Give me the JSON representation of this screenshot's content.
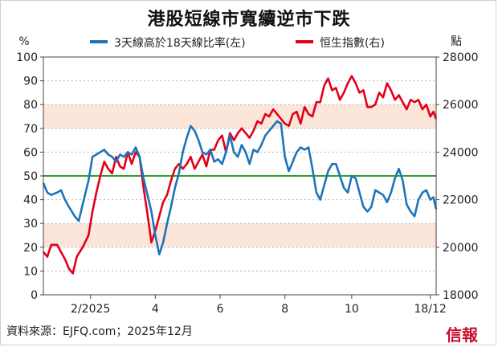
{
  "chart_data": {
    "type": "line",
    "title": "港股短線市寬續逆市下跌",
    "y_left": {
      "label": "%",
      "range": [
        0,
        100
      ],
      "ticks": [
        0,
        10,
        20,
        30,
        40,
        50,
        60,
        70,
        80,
        90,
        100
      ]
    },
    "y_right": {
      "label": "點",
      "range": [
        18000,
        28000
      ],
      "ticks": [
        18000,
        20000,
        22000,
        24000,
        26000,
        28000
      ]
    },
    "x_ticks": [
      {
        "label": "2/2025",
        "pos": 0.12
      },
      {
        "label": "4",
        "pos": 0.285
      },
      {
        "label": "6",
        "pos": 0.45
      },
      {
        "label": "8",
        "pos": 0.615
      },
      {
        "label": "10",
        "pos": 0.785
      },
      {
        "label": "18/12",
        "pos": 0.985
      }
    ],
    "reference_line": {
      "value": 50,
      "color": "#2ca02c"
    },
    "bands": [
      {
        "from": 70,
        "to": 80,
        "color": "#fbe6d9"
      },
      {
        "from": 20,
        "to": 30,
        "color": "#fbe6d9"
      }
    ],
    "series": [
      {
        "name": "3天線高於18天線比率(左)",
        "axis": "left",
        "color": "#1b75bc",
        "points": [
          [
            0.0,
            47
          ],
          [
            0.01,
            43
          ],
          [
            0.02,
            42
          ],
          [
            0.035,
            43
          ],
          [
            0.045,
            44
          ],
          [
            0.055,
            40
          ],
          [
            0.065,
            37
          ],
          [
            0.08,
            33
          ],
          [
            0.09,
            31
          ],
          [
            0.1,
            38
          ],
          [
            0.115,
            48
          ],
          [
            0.125,
            58
          ],
          [
            0.135,
            59
          ],
          [
            0.145,
            60
          ],
          [
            0.155,
            61
          ],
          [
            0.165,
            59
          ],
          [
            0.175,
            58
          ],
          [
            0.185,
            56
          ],
          [
            0.195,
            59
          ],
          [
            0.205,
            58
          ],
          [
            0.215,
            60
          ],
          [
            0.225,
            59
          ],
          [
            0.235,
            62
          ],
          [
            0.245,
            58
          ],
          [
            0.255,
            49
          ],
          [
            0.265,
            42
          ],
          [
            0.275,
            35
          ],
          [
            0.285,
            25
          ],
          [
            0.295,
            17
          ],
          [
            0.305,
            22
          ],
          [
            0.315,
            30
          ],
          [
            0.325,
            37
          ],
          [
            0.335,
            45
          ],
          [
            0.345,
            51
          ],
          [
            0.355,
            60
          ],
          [
            0.365,
            66
          ],
          [
            0.375,
            71
          ],
          [
            0.385,
            69
          ],
          [
            0.395,
            65
          ],
          [
            0.405,
            60
          ],
          [
            0.415,
            59
          ],
          [
            0.425,
            61
          ],
          [
            0.435,
            56
          ],
          [
            0.445,
            57
          ],
          [
            0.455,
            55
          ],
          [
            0.465,
            60
          ],
          [
            0.475,
            67
          ],
          [
            0.485,
            60
          ],
          [
            0.495,
            58
          ],
          [
            0.505,
            63
          ],
          [
            0.515,
            60
          ],
          [
            0.525,
            55
          ],
          [
            0.535,
            61
          ],
          [
            0.545,
            60
          ],
          [
            0.555,
            63
          ],
          [
            0.565,
            67
          ],
          [
            0.575,
            69
          ],
          [
            0.585,
            71
          ],
          [
            0.595,
            73
          ],
          [
            0.605,
            72
          ],
          [
            0.615,
            58
          ],
          [
            0.625,
            52
          ],
          [
            0.635,
            56
          ],
          [
            0.645,
            60
          ],
          [
            0.655,
            62
          ],
          [
            0.665,
            61
          ],
          [
            0.675,
            62
          ],
          [
            0.685,
            53
          ],
          [
            0.695,
            43
          ],
          [
            0.705,
            40
          ],
          [
            0.715,
            46
          ],
          [
            0.725,
            52
          ],
          [
            0.735,
            55
          ],
          [
            0.745,
            55
          ],
          [
            0.755,
            50
          ],
          [
            0.765,
            45
          ],
          [
            0.775,
            43
          ],
          [
            0.785,
            50
          ],
          [
            0.795,
            49
          ],
          [
            0.805,
            43
          ],
          [
            0.815,
            37
          ],
          [
            0.825,
            35
          ],
          [
            0.835,
            37
          ],
          [
            0.845,
            44
          ],
          [
            0.855,
            43
          ],
          [
            0.865,
            42
          ],
          [
            0.875,
            39
          ],
          [
            0.885,
            43
          ],
          [
            0.895,
            49
          ],
          [
            0.905,
            53
          ],
          [
            0.915,
            48
          ],
          [
            0.925,
            38
          ],
          [
            0.935,
            35
          ],
          [
            0.945,
            33
          ],
          [
            0.955,
            40
          ],
          [
            0.965,
            43
          ],
          [
            0.975,
            44
          ],
          [
            0.985,
            40
          ],
          [
            0.993,
            41
          ],
          [
            1.0,
            36
          ]
        ]
      },
      {
        "name": "恒生指數(右)",
        "axis": "right",
        "color": "#e2001a",
        "points": [
          [
            0.0,
            19800
          ],
          [
            0.01,
            19600
          ],
          [
            0.02,
            20100
          ],
          [
            0.035,
            20100
          ],
          [
            0.045,
            19800
          ],
          [
            0.055,
            19500
          ],
          [
            0.065,
            19100
          ],
          [
            0.075,
            18900
          ],
          [
            0.085,
            19600
          ],
          [
            0.1,
            20000
          ],
          [
            0.115,
            20500
          ],
          [
            0.125,
            21500
          ],
          [
            0.135,
            22300
          ],
          [
            0.145,
            23000
          ],
          [
            0.155,
            23600
          ],
          [
            0.165,
            23300
          ],
          [
            0.175,
            23100
          ],
          [
            0.185,
            23800
          ],
          [
            0.195,
            23400
          ],
          [
            0.205,
            23300
          ],
          [
            0.215,
            24000
          ],
          [
            0.225,
            23500
          ],
          [
            0.235,
            24000
          ],
          [
            0.245,
            23800
          ],
          [
            0.255,
            22500
          ],
          [
            0.265,
            21400
          ],
          [
            0.275,
            20200
          ],
          [
            0.285,
            20700
          ],
          [
            0.295,
            21300
          ],
          [
            0.305,
            21900
          ],
          [
            0.315,
            22200
          ],
          [
            0.325,
            22800
          ],
          [
            0.335,
            23300
          ],
          [
            0.345,
            23500
          ],
          [
            0.355,
            23300
          ],
          [
            0.365,
            23500
          ],
          [
            0.375,
            23800
          ],
          [
            0.385,
            23300
          ],
          [
            0.395,
            23600
          ],
          [
            0.405,
            23900
          ],
          [
            0.415,
            23400
          ],
          [
            0.425,
            24100
          ],
          [
            0.435,
            24100
          ],
          [
            0.445,
            24500
          ],
          [
            0.455,
            24700
          ],
          [
            0.465,
            24000
          ],
          [
            0.475,
            24800
          ],
          [
            0.485,
            24500
          ],
          [
            0.495,
            24800
          ],
          [
            0.505,
            25000
          ],
          [
            0.515,
            24800
          ],
          [
            0.525,
            24600
          ],
          [
            0.535,
            24900
          ],
          [
            0.545,
            25300
          ],
          [
            0.555,
            25200
          ],
          [
            0.565,
            25600
          ],
          [
            0.575,
            25500
          ],
          [
            0.585,
            25800
          ],
          [
            0.595,
            25600
          ],
          [
            0.605,
            25400
          ],
          [
            0.615,
            25200
          ],
          [
            0.625,
            25100
          ],
          [
            0.635,
            25600
          ],
          [
            0.645,
            25700
          ],
          [
            0.655,
            25200
          ],
          [
            0.665,
            25900
          ],
          [
            0.675,
            25600
          ],
          [
            0.685,
            25500
          ],
          [
            0.695,
            26100
          ],
          [
            0.705,
            26100
          ],
          [
            0.715,
            26800
          ],
          [
            0.725,
            27100
          ],
          [
            0.735,
            26600
          ],
          [
            0.745,
            26700
          ],
          [
            0.755,
            26200
          ],
          [
            0.765,
            26500
          ],
          [
            0.775,
            26900
          ],
          [
            0.785,
            27200
          ],
          [
            0.795,
            26900
          ],
          [
            0.805,
            26500
          ],
          [
            0.815,
            26600
          ],
          [
            0.825,
            25900
          ],
          [
            0.835,
            25900
          ],
          [
            0.845,
            26000
          ],
          [
            0.855,
            26500
          ],
          [
            0.865,
            26300
          ],
          [
            0.875,
            26900
          ],
          [
            0.885,
            26600
          ],
          [
            0.895,
            26200
          ],
          [
            0.905,
            26400
          ],
          [
            0.915,
            26100
          ],
          [
            0.925,
            25800
          ],
          [
            0.935,
            26200
          ],
          [
            0.945,
            26100
          ],
          [
            0.955,
            26200
          ],
          [
            0.965,
            25800
          ],
          [
            0.975,
            26000
          ],
          [
            0.985,
            25500
          ],
          [
            0.993,
            25700
          ],
          [
            1.0,
            25400
          ]
        ]
      }
    ]
  },
  "legend": {
    "items": [
      {
        "label": "3天線高於18天線比率(左)",
        "color": "#1b75bc"
      },
      {
        "label": "恒生指數(右)",
        "color": "#e2001a"
      }
    ]
  },
  "footer": {
    "source": "資料來源：EJFQ.com；2025年12月",
    "logo": "信報"
  }
}
